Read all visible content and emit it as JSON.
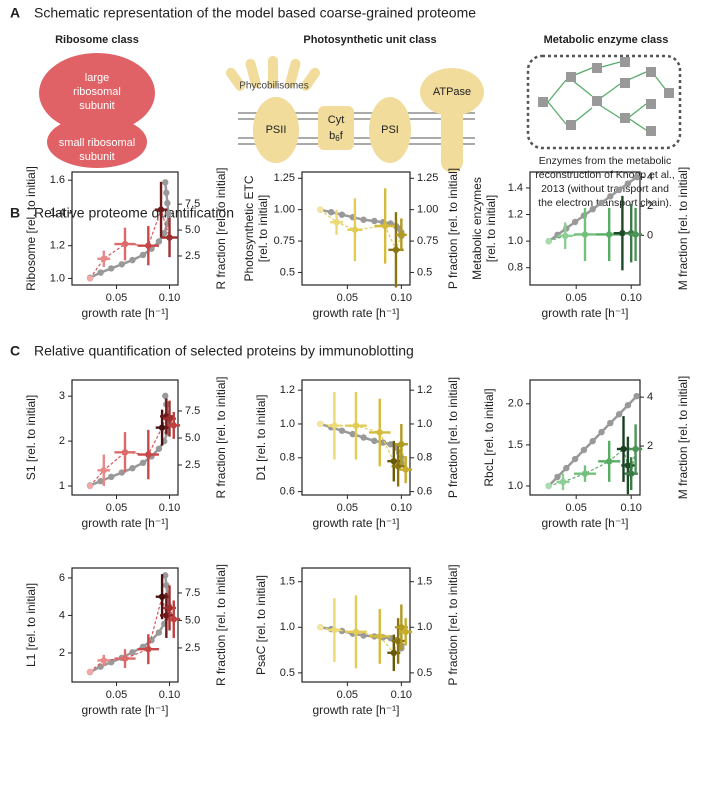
{
  "sections": [
    {
      "letter": "A",
      "title": "Schematic representation of the model based coarse-grained proteome"
    },
    {
      "letter": "B",
      "title": "Relative proteome quantification"
    },
    {
      "letter": "C",
      "title": "Relative quantification of selected proteins by immunoblotting"
    }
  ],
  "schematic": {
    "ribosome_title": "Ribosome class",
    "large_subunit": [
      "large",
      "ribosomal",
      "subunit"
    ],
    "small_subunit": [
      "small ribosomal",
      "subunit"
    ],
    "photosynthetic_title": "Photosynthetic unit class",
    "phycobilisomes": "Phycobilisomes",
    "psii": "PSII",
    "cyt": "Cyt",
    "b6f": "b",
    "b6f_sub": "6",
    "b6f_end": "f",
    "psi": "PSI",
    "atpase": "ATPase",
    "metabolic_title": "Metabolic enzyme class",
    "caption": [
      "Enzymes from the metabolic",
      "reconstruction of Knoop et al.,",
      "2013 (without transport and",
      "the electron transport chain)."
    ]
  },
  "chart_data": [
    {
      "type": "errorbar",
      "ylabel": [
        "Ribosome [rel. to initial]"
      ],
      "ylabel_color": "#d9555a",
      "y2label": "R fraction [rel. to initial]",
      "y2label_color": "#aaaaaa",
      "xlabel": "growth rate [h⁻¹]",
      "xlim": [
        0.008,
        0.108
      ],
      "xticks": [
        0.05,
        {
          "value": 0.1,
          "label": "0.10"
        }
      ],
      "ylim": [
        0.96,
        1.65
      ],
      "yticks": [
        {
          "value": 1,
          "label": "1.0"
        },
        {
          "value": 1.2,
          "label": "1.2"
        },
        {
          "value": 1.4,
          "label": "1.4"
        },
        {
          "value": 1.6,
          "label": "1.6"
        }
      ],
      "y2lim": [
        -0.3,
        10.6
      ],
      "y2ticks": [
        2.5,
        {
          "value": 5,
          "label": "5.0"
        },
        7.5
      ],
      "series": [
        {
          "axis": "y2",
          "color": "#999999",
          "x": [
            0.025,
            0.035,
            0.045,
            0.055,
            0.065,
            0.075,
            0.083,
            0.09,
            0.095,
            0.098,
            0.099,
            0.098,
            0.097,
            0.096
          ],
          "values": [
            0.4,
            0.9,
            1.3,
            1.7,
            2.1,
            2.6,
            3.2,
            3.9,
            4.7,
            5.6,
            6.6,
            7.6,
            8.6,
            9.6
          ]
        },
        {
          "color": "#d9555a",
          "point_colors": [
            "#f0a8a8",
            "#e88888",
            "#dd6a6a",
            "#c84848",
            "#6e1a1a",
            "#a03030"
          ],
          "x": [
            0.025,
            0.038,
            0.058,
            0.08,
            0.092,
            0.1
          ],
          "values": [
            1.0,
            1.12,
            1.21,
            1.2,
            1.42,
            1.25
          ],
          "xerr": [
            0,
            0.006,
            0.01,
            0.01,
            0.006,
            0.008
          ],
          "yerr": [
            0,
            0.05,
            0.1,
            0.12,
            0.17,
            0.12
          ]
        }
      ]
    },
    {
      "type": "errorbar",
      "ylabel": [
        "Photosynthetic ETC",
        "[rel. to initial]"
      ],
      "ylabel_color": "#e6cc55",
      "y2label": "P fraction [rel. to initial]",
      "y2label_color": "#aaaaaa",
      "xlabel": "growth rate [h⁻¹]",
      "xlim": [
        0.008,
        0.108
      ],
      "xticks": [
        0.05,
        {
          "value": 0.1,
          "label": "0.10"
        }
      ],
      "ylim": [
        0.4,
        1.3
      ],
      "yticks": [
        0.5,
        0.75,
        {
          "value": 1,
          "label": "1.00"
        },
        1.25
      ],
      "y2lim": [
        0.4,
        1.3
      ],
      "y2ticks": [
        0.5,
        0.75,
        {
          "value": 1,
          "label": "1.00"
        },
        1.25
      ],
      "series": [
        {
          "axis": "y2",
          "color": "#999999",
          "x": [
            0.025,
            0.035,
            0.045,
            0.055,
            0.065,
            0.075,
            0.083,
            0.09,
            0.095,
            0.098,
            0.1,
            0.1
          ],
          "values": [
            1.0,
            0.98,
            0.96,
            0.94,
            0.92,
            0.91,
            0.9,
            0.89,
            0.87,
            0.85,
            0.82,
            0.79
          ]
        },
        {
          "color": "#e6cc55",
          "point_colors": [
            "#f3e6a0",
            "#ecd978",
            "#e2cc55",
            "#d4bb3a",
            "#8a7410",
            "#b09a20"
          ],
          "x": [
            0.025,
            0.04,
            0.057,
            0.085,
            0.095,
            0.1
          ],
          "values": [
            1.0,
            0.9,
            0.84,
            0.87,
            0.68,
            0.8
          ],
          "xerr": [
            0,
            0.006,
            0.007,
            0.01,
            0.007,
            0.005
          ],
          "yerr": [
            0,
            0.1,
            0.25,
            0.3,
            0.3,
            0.13
          ]
        }
      ]
    },
    {
      "type": "errorbar",
      "ylabel": [
        "Metabolic enzymes",
        "[rel. to initial]"
      ],
      "ylabel_color": "#5aab6a",
      "y2label": "M fraction [rel. to initial]",
      "y2label_color": "#aaaaaa",
      "xlabel": "growth rate [h⁻¹]",
      "xlim": [
        0.008,
        0.108
      ],
      "xticks": [
        0.05,
        {
          "value": 0.1,
          "label": "0.10"
        }
      ],
      "ylim": [
        0.67,
        1.52
      ],
      "yticks": [
        {
          "value": 0.8,
          "label": "0.8"
        },
        {
          "value": 1,
          "label": "1.0"
        },
        {
          "value": 1.2,
          "label": "1.2"
        },
        {
          "value": 1.4,
          "label": "1.4"
        }
      ],
      "y2lim": [
        -3.4,
        4.35
      ],
      "y2ticks": [
        0,
        2,
        4
      ],
      "series": [
        {
          "axis": "y2",
          "color": "#999999",
          "x": [
            0.025,
            0.033,
            0.041,
            0.049,
            0.057,
            0.065,
            0.073,
            0.081,
            0.089,
            0.097,
            0.105
          ],
          "values": [
            -0.4,
            0.04,
            0.48,
            0.92,
            1.36,
            1.8,
            2.24,
            2.68,
            3.12,
            3.56,
            4.0
          ]
        },
        {
          "color": "#5aab6a",
          "point_colors": [
            "#a8dcae",
            "#8ccf94",
            "#72c07c",
            "#58ad64",
            "#1f4a28",
            "#3a7a46",
            "#4d9458"
          ],
          "x": [
            0.025,
            0.04,
            0.058,
            0.08,
            0.092,
            0.1,
            0.104
          ],
          "values": [
            1.0,
            1.04,
            1.05,
            1.05,
            1.06,
            1.06,
            1.05
          ],
          "xerr": [
            0,
            0.007,
            0.01,
            0.012,
            0.008,
            0.006,
            0.006
          ],
          "yerr": [
            0,
            0.1,
            0.2,
            0.2,
            0.28,
            0.22,
            0.2
          ]
        }
      ]
    },
    {
      "type": "errorbar",
      "ylabel": [
        "S1 [rel. to initial]"
      ],
      "ylabel_color": "#d9555a",
      "y2label": "R fraction [rel. to initial]",
      "y2label_color": "#aaaaaa",
      "xlabel": "growth rate [h⁻¹]",
      "xlim": [
        0.008,
        0.108
      ],
      "xticks": [
        0.05,
        {
          "value": 0.1,
          "label": "0.10"
        }
      ],
      "ylim": [
        0.8,
        3.36
      ],
      "yticks": [
        1,
        2,
        3
      ],
      "y2lim": [
        -0.28,
        10.37
      ],
      "y2ticks": [
        2.5,
        {
          "value": 5,
          "label": "5.0"
        },
        7.5
      ],
      "series": [
        {
          "axis": "y2",
          "color": "#999999",
          "x": [
            0.025,
            0.035,
            0.045,
            0.055,
            0.065,
            0.075,
            0.083,
            0.09,
            0.095,
            0.098,
            0.099,
            0.098,
            0.097,
            0.096
          ],
          "values": [
            0.6,
            1.0,
            1.4,
            1.8,
            2.2,
            2.7,
            3.3,
            4.0,
            4.7,
            5.5,
            6.3,
            7.2,
            8.1,
            8.9
          ]
        },
        {
          "color": "#d9555a",
          "point_colors": [
            "#f0a8a8",
            "#e88888",
            "#dd6a6a",
            "#c84848",
            "#4a1010",
            "#6e1a1a",
            "#a03030",
            "#c04040"
          ],
          "x": [
            0.025,
            0.038,
            0.058,
            0.08,
            0.093,
            0.097,
            0.1,
            0.104
          ],
          "values": [
            1.0,
            1.35,
            1.75,
            1.7,
            2.3,
            2.55,
            2.5,
            2.35
          ],
          "xerr": [
            0,
            0.006,
            0.01,
            0.01,
            0.006,
            0.006,
            0.006,
            0.006
          ],
          "yerr": [
            0,
            0.35,
            0.45,
            0.55,
            0.4,
            0.4,
            0.4,
            0.3
          ]
        }
      ]
    },
    {
      "type": "errorbar",
      "ylabel": [
        "D1 [rel. to initial]"
      ],
      "ylabel_color": "#e6cc55",
      "y2label": "P fraction [rel. to initial]",
      "y2label_color": "#aaaaaa",
      "xlabel": "growth rate [h⁻¹]",
      "xlim": [
        0.008,
        0.108
      ],
      "xticks": [
        0.05,
        {
          "value": 0.1,
          "label": "0.10"
        }
      ],
      "ylim": [
        0.58,
        1.26
      ],
      "yticks": [
        {
          "value": 0.6,
          "label": "0.6"
        },
        {
          "value": 0.8,
          "label": "0.8"
        },
        {
          "value": 1,
          "label": "1.0"
        },
        {
          "value": 1.2,
          "label": "1.2"
        }
      ],
      "y2lim": [
        0.58,
        1.26
      ],
      "y2ticks": [
        {
          "value": 0.6,
          "label": "0.6"
        },
        {
          "value": 0.8,
          "label": "0.8"
        },
        {
          "value": 1,
          "label": "1.0"
        },
        {
          "value": 1.2,
          "label": "1.2"
        }
      ],
      "series": [
        {
          "axis": "y2",
          "color": "#999999",
          "x": [
            0.025,
            0.035,
            0.045,
            0.055,
            0.065,
            0.075,
            0.083,
            0.09,
            0.095,
            0.098,
            0.1,
            0.1
          ],
          "values": [
            1.0,
            0.98,
            0.96,
            0.94,
            0.92,
            0.9,
            0.89,
            0.88,
            0.86,
            0.83,
            0.8,
            0.77
          ]
        },
        {
          "color": "#e6cc55",
          "point_colors": [
            "#f3e6a0",
            "#ecd978",
            "#e2cc55",
            "#d4bb3a",
            "#6a5a08",
            "#8a7410",
            "#b09a20",
            "#c8ae28"
          ],
          "x": [
            0.025,
            0.038,
            0.058,
            0.08,
            0.093,
            0.097,
            0.1,
            0.104
          ],
          "values": [
            1.0,
            0.99,
            0.99,
            0.95,
            0.78,
            0.75,
            0.88,
            0.73
          ],
          "xerr": [
            0,
            0.006,
            0.01,
            0.01,
            0.006,
            0.006,
            0.006,
            0.006
          ],
          "yerr": [
            0,
            0.2,
            0.2,
            0.2,
            0.12,
            0.12,
            0.12,
            0.08
          ]
        }
      ]
    },
    {
      "type": "errorbar",
      "ylabel": [
        "RbcL [rel. to initial]"
      ],
      "ylabel_color": "#5aab6a",
      "y2label": "M fraction [rel. to initial]",
      "y2label_color": "#aaaaaa",
      "xlabel": "growth rate [h⁻¹]",
      "xlim": [
        0.008,
        0.108
      ],
      "xticks": [
        0.05,
        {
          "value": 0.1,
          "label": "0.10"
        }
      ],
      "ylim": [
        0.89,
        2.29
      ],
      "yticks": [
        {
          "value": 1,
          "label": "1.0"
        },
        1.5,
        {
          "value": 2,
          "label": "2.0"
        }
      ],
      "y2lim": [
        0,
        4.7
      ],
      "y2ticks": [
        2,
        4
      ],
      "series": [
        {
          "axis": "y2",
          "color": "#999999",
          "x": [
            0.025,
            0.033,
            0.041,
            0.049,
            0.057,
            0.065,
            0.073,
            0.081,
            0.089,
            0.097,
            0.105
          ],
          "values": [
            0.37,
            0.74,
            1.1,
            1.47,
            1.84,
            2.2,
            2.57,
            2.94,
            3.3,
            3.67,
            4.04
          ]
        },
        {
          "color": "#5aab6a",
          "point_colors": [
            "#a8dcae",
            "#8ccf94",
            "#72c07c",
            "#58ad64",
            "#1a3e22",
            "#1f4a28",
            "#3a7a46",
            "#4d9458"
          ],
          "x": [
            0.025,
            0.038,
            0.058,
            0.08,
            0.093,
            0.097,
            0.1,
            0.104
          ],
          "values": [
            1.0,
            1.05,
            1.15,
            1.3,
            1.45,
            1.25,
            1.15,
            1.45
          ],
          "xerr": [
            0,
            0.006,
            0.01,
            0.01,
            0.006,
            0.006,
            0.006,
            0.006
          ],
          "yerr": [
            0,
            0.1,
            0.1,
            0.25,
            0.4,
            0.35,
            0.2,
            0.3
          ]
        }
      ]
    },
    {
      "type": "errorbar",
      "ylabel": [
        "L1 [rel. to initial]"
      ],
      "ylabel_color": "#d9555a",
      "y2label": "R fraction [rel. to initial]",
      "y2label_color": "#aaaaaa",
      "xlabel": "growth rate [h⁻¹]",
      "xlim": [
        0.008,
        0.108
      ],
      "xticks": [
        0.05,
        {
          "value": 0.1,
          "label": "0.10"
        }
      ],
      "ylim": [
        0.45,
        6.53
      ],
      "yticks": [
        2,
        4,
        6
      ],
      "y2lim": [
        -0.6,
        9.77
      ],
      "y2ticks": [
        2.5,
        {
          "value": 5,
          "label": "5.0"
        },
        7.5
      ],
      "series": [
        {
          "axis": "y2",
          "color": "#999999",
          "x": [
            0.025,
            0.035,
            0.045,
            0.055,
            0.065,
            0.075,
            0.083,
            0.09,
            0.095,
            0.098,
            0.099,
            0.098,
            0.097,
            0.096
          ],
          "values": [
            0.3,
            0.8,
            1.2,
            1.6,
            2.1,
            2.6,
            3.2,
            3.9,
            4.7,
            5.5,
            6.4,
            7.3,
            8.2,
            9.1
          ]
        },
        {
          "color": "#d9555a",
          "point_colors": [
            "#f0a8a8",
            "#e88888",
            "#dd6a6a",
            "#c84848",
            "#4a1010",
            "#6e1a1a",
            "#a03030",
            "#c04040"
          ],
          "x": [
            0.025,
            0.038,
            0.058,
            0.08,
            0.093,
            0.097,
            0.1,
            0.104
          ],
          "values": [
            1.0,
            1.6,
            1.7,
            2.2,
            5.0,
            4.0,
            4.4,
            3.8
          ],
          "xerr": [
            0,
            0.006,
            0.01,
            0.01,
            0.006,
            0.006,
            0.006,
            0.006
          ],
          "yerr": [
            0,
            0.3,
            0.5,
            0.8,
            1.2,
            1.2,
            1.2,
            1.0
          ]
        }
      ]
    },
    {
      "type": "errorbar",
      "ylabel": [
        "PsaC [rel. to initial]"
      ],
      "ylabel_color": "#e6cc55",
      "y2label": "P fraction [rel. to initial]",
      "y2label_color": "#aaaaaa",
      "xlabel": "growth rate [h⁻¹]",
      "xlim": [
        0.008,
        0.108
      ],
      "xticks": [
        0.05,
        {
          "value": 0.1,
          "label": "0.10"
        }
      ],
      "ylim": [
        0.4,
        1.65
      ],
      "yticks": [
        0.5,
        {
          "value": 1,
          "label": "1.0"
        },
        1.5
      ],
      "y2lim": [
        0.4,
        1.65
      ],
      "y2ticks": [
        0.5,
        {
          "value": 1,
          "label": "1.0"
        },
        1.5
      ],
      "series": [
        {
          "axis": "y2",
          "color": "#999999",
          "x": [
            0.025,
            0.035,
            0.045,
            0.055,
            0.065,
            0.075,
            0.083,
            0.09,
            0.095,
            0.098,
            0.1,
            0.1
          ],
          "values": [
            1.0,
            0.98,
            0.96,
            0.93,
            0.91,
            0.9,
            0.89,
            0.88,
            0.86,
            0.83,
            0.8,
            0.77
          ]
        },
        {
          "color": "#e6cc55",
          "point_colors": [
            "#f3e6a0",
            "#ecd978",
            "#e2cc55",
            "#d4bb3a",
            "#6a5a08",
            "#8a7410",
            "#b09a20",
            "#c8ae28"
          ],
          "x": [
            0.025,
            0.038,
            0.058,
            0.08,
            0.093,
            0.097,
            0.1,
            0.104
          ],
          "values": [
            1.0,
            0.97,
            0.95,
            0.9,
            0.72,
            0.85,
            1.0,
            0.95
          ],
          "xerr": [
            0,
            0.006,
            0.01,
            0.01,
            0.006,
            0.006,
            0.006,
            0.006
          ],
          "yerr": [
            0,
            0.35,
            0.4,
            0.3,
            0.2,
            0.25,
            0.25,
            0.15
          ]
        }
      ]
    }
  ]
}
